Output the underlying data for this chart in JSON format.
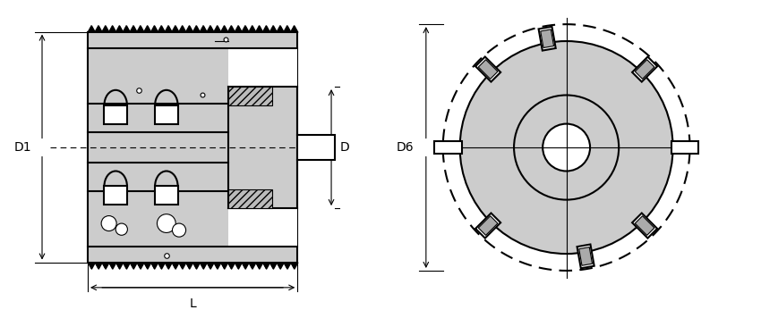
{
  "bg_color": "#ffffff",
  "line_color": "#000000",
  "fill_color": "#cccccc",
  "lw_main": 1.5,
  "lw_thin": 0.8,
  "lw_dim": 0.8,
  "font_size": 10,
  "fig_width": 8.5,
  "fig_height": 3.47,
  "labels": {
    "D1": "D1",
    "D": "D",
    "D6": "D6",
    "L": "L"
  }
}
